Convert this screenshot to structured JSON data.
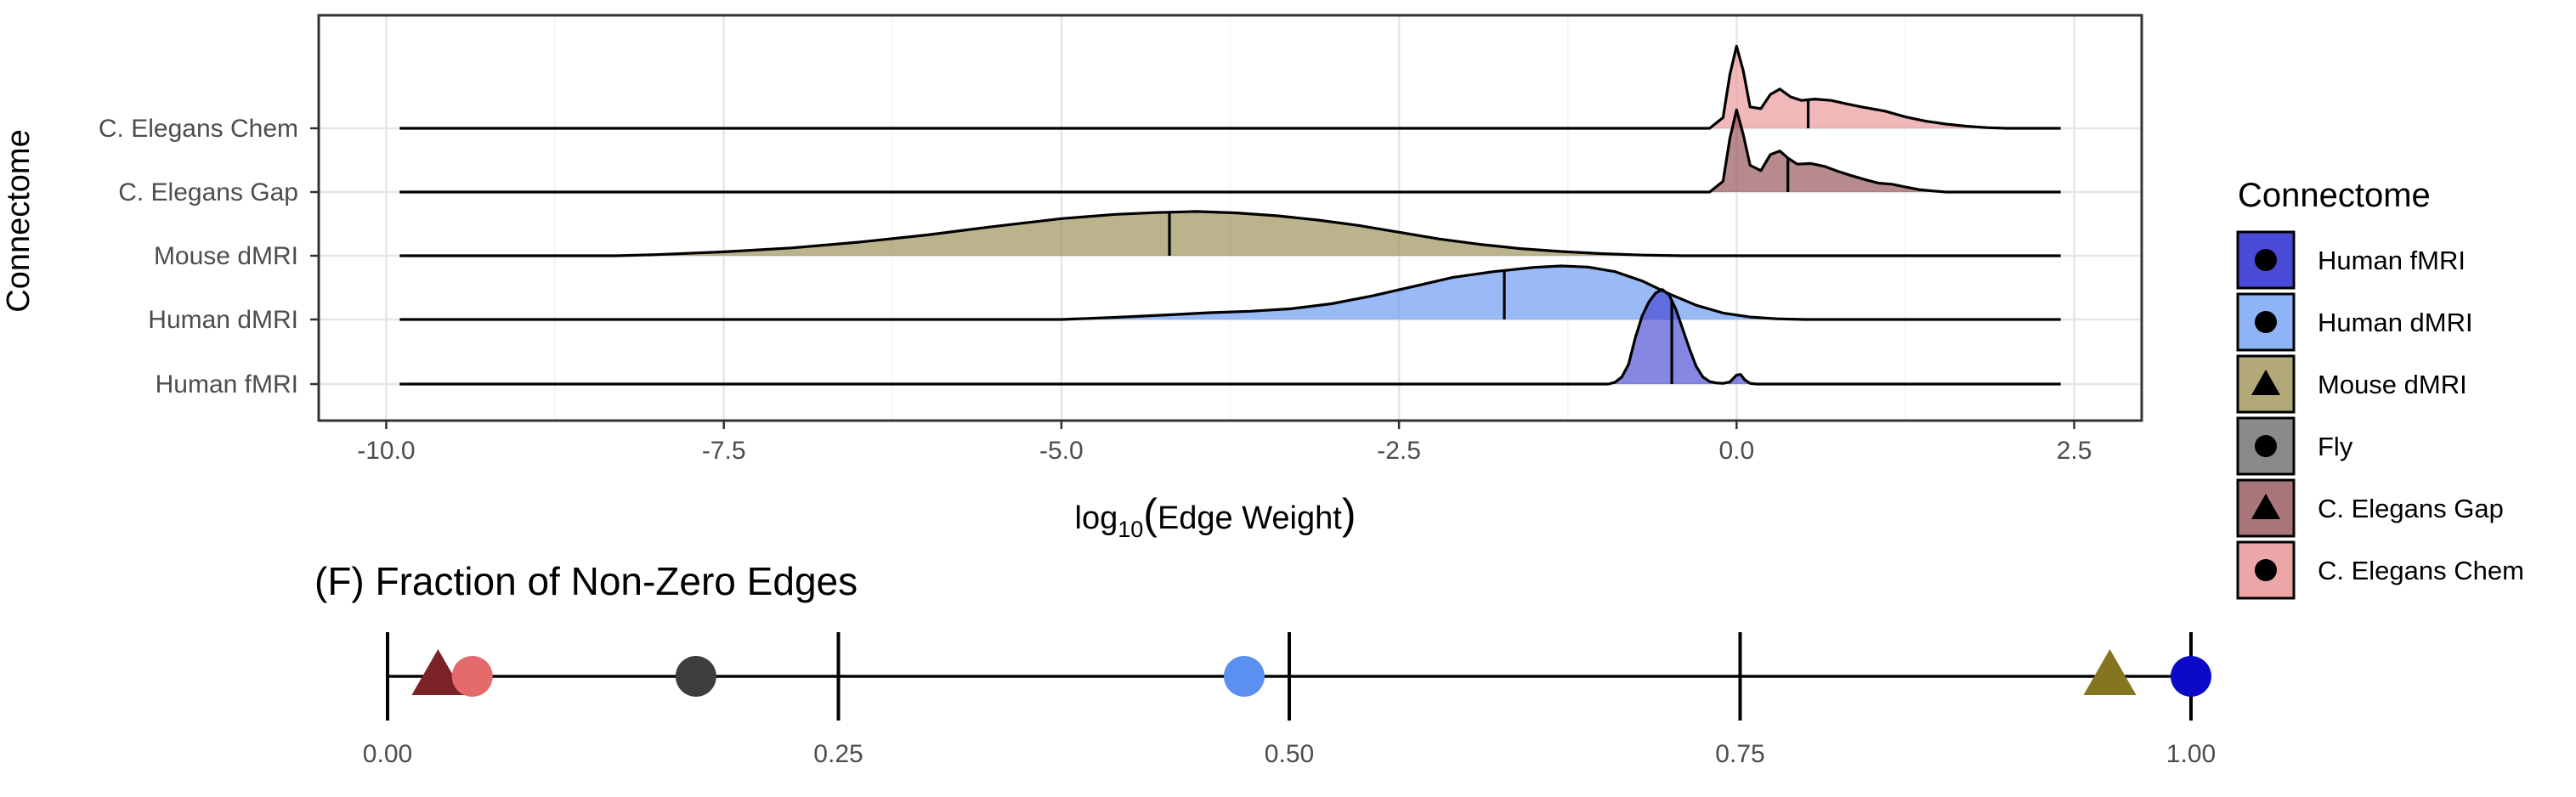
{
  "chart_data": [
    {
      "type": "ridgeline",
      "ylabel": "Connectome",
      "xlabel_prefix": "log",
      "xlabel_sub": "10",
      "xlabel_inner": "Edge Weight",
      "xlim": [
        -10.5,
        3.0
      ],
      "x_ticks": [
        -10.0,
        -7.5,
        -5.0,
        -2.5,
        0.0,
        2.5
      ],
      "x_tick_labels": [
        "-10.0",
        "-7.5",
        "-5.0",
        "-2.5",
        "0.0",
        "2.5"
      ],
      "grid": true,
      "series": [
        {
          "name": "Human fMRI",
          "color": "#3b3ed0",
          "line_range": [
            -9.9,
            2.4
          ],
          "median": -0.48,
          "density": [
            [
              -0.95,
              0
            ],
            [
              -0.9,
              0.05
            ],
            [
              -0.85,
              0.2
            ],
            [
              -0.8,
              0.55
            ],
            [
              -0.75,
              1.3
            ],
            [
              -0.7,
              1.9
            ],
            [
              -0.65,
              2.3
            ],
            [
              -0.6,
              2.55
            ],
            [
              -0.55,
              2.65
            ],
            [
              -0.5,
              2.5
            ],
            [
              -0.45,
              2.1
            ],
            [
              -0.4,
              1.55
            ],
            [
              -0.35,
              1.0
            ],
            [
              -0.3,
              0.5
            ],
            [
              -0.25,
              0.2
            ],
            [
              -0.2,
              0.07
            ],
            [
              -0.15,
              0.03
            ],
            [
              -0.1,
              0.02
            ],
            [
              -0.05,
              0.06
            ],
            [
              0.0,
              0.25
            ],
            [
              0.03,
              0.27
            ],
            [
              0.06,
              0.12
            ],
            [
              0.1,
              0.02
            ],
            [
              0.15,
              0
            ]
          ]
        },
        {
          "name": "Human dMRI",
          "color": "#5b8ff0",
          "line_range": [
            -9.9,
            2.4
          ],
          "median": -1.72,
          "density": [
            [
              -5.0,
              0
            ],
            [
              -4.6,
              0.06
            ],
            [
              -4.2,
              0.13
            ],
            [
              -3.9,
              0.19
            ],
            [
              -3.6,
              0.23
            ],
            [
              -3.3,
              0.3
            ],
            [
              -3.0,
              0.44
            ],
            [
              -2.7,
              0.66
            ],
            [
              -2.4,
              0.92
            ],
            [
              -2.1,
              1.18
            ],
            [
              -1.8,
              1.34
            ],
            [
              -1.5,
              1.46
            ],
            [
              -1.3,
              1.5
            ],
            [
              -1.1,
              1.47
            ],
            [
              -0.9,
              1.34
            ],
            [
              -0.7,
              1.08
            ],
            [
              -0.5,
              0.72
            ],
            [
              -0.3,
              0.4
            ],
            [
              -0.1,
              0.18
            ],
            [
              0.1,
              0.07
            ],
            [
              0.3,
              0.02
            ],
            [
              0.5,
              0
            ]
          ]
        },
        {
          "name": "Mouse dMRI",
          "color": "#8f8443",
          "line_range": [
            -9.9,
            2.4
          ],
          "median": -4.2,
          "density": [
            [
              -8.3,
              0
            ],
            [
              -8.0,
              0.03
            ],
            [
              -7.5,
              0.11
            ],
            [
              -7.0,
              0.22
            ],
            [
              -6.5,
              0.38
            ],
            [
              -6.0,
              0.58
            ],
            [
              -5.5,
              0.82
            ],
            [
              -5.0,
              1.04
            ],
            [
              -4.6,
              1.16
            ],
            [
              -4.3,
              1.21
            ],
            [
              -4.0,
              1.24
            ],
            [
              -3.7,
              1.2
            ],
            [
              -3.4,
              1.12
            ],
            [
              -3.1,
              1.0
            ],
            [
              -2.8,
              0.85
            ],
            [
              -2.5,
              0.66
            ],
            [
              -2.2,
              0.47
            ],
            [
              -1.9,
              0.32
            ],
            [
              -1.6,
              0.2
            ],
            [
              -1.3,
              0.12
            ],
            [
              -1.0,
              0.06
            ],
            [
              -0.7,
              0.02
            ],
            [
              -0.4,
              0
            ]
          ]
        },
        {
          "name": "C. Elegans Gap",
          "color": "#8a4347",
          "line_range": [
            -9.9,
            2.4
          ],
          "median": 0.38,
          "density": [
            [
              -0.2,
              0
            ],
            [
              -0.1,
              0.3
            ],
            [
              -0.05,
              1.5
            ],
            [
              0.0,
              2.3
            ],
            [
              0.05,
              1.6
            ],
            [
              0.1,
              0.75
            ],
            [
              0.18,
              0.6
            ],
            [
              0.25,
              1.05
            ],
            [
              0.32,
              1.15
            ],
            [
              0.38,
              0.95
            ],
            [
              0.45,
              0.78
            ],
            [
              0.55,
              0.8
            ],
            [
              0.65,
              0.72
            ],
            [
              0.75,
              0.58
            ],
            [
              0.85,
              0.46
            ],
            [
              0.95,
              0.35
            ],
            [
              1.05,
              0.25
            ],
            [
              1.15,
              0.22
            ],
            [
              1.25,
              0.14
            ],
            [
              1.35,
              0.07
            ],
            [
              1.45,
              0.03
            ],
            [
              1.55,
              0
            ]
          ]
        },
        {
          "name": "C. Elegans Chem",
          "color": "#e88d8e",
          "line_range": [
            -9.9,
            2.4
          ],
          "median": 0.53,
          "density": [
            [
              -0.2,
              0
            ],
            [
              -0.1,
              0.3
            ],
            [
              -0.05,
              1.5
            ],
            [
              0.0,
              2.3
            ],
            [
              0.05,
              1.6
            ],
            [
              0.1,
              0.6
            ],
            [
              0.18,
              0.55
            ],
            [
              0.25,
              0.95
            ],
            [
              0.32,
              1.1
            ],
            [
              0.4,
              0.88
            ],
            [
              0.48,
              0.78
            ],
            [
              0.58,
              0.82
            ],
            [
              0.7,
              0.78
            ],
            [
              0.82,
              0.68
            ],
            [
              0.95,
              0.58
            ],
            [
              1.1,
              0.48
            ],
            [
              1.25,
              0.32
            ],
            [
              1.4,
              0.2
            ],
            [
              1.55,
              0.12
            ],
            [
              1.7,
              0.06
            ],
            [
              1.85,
              0.02
            ],
            [
              2.0,
              0
            ]
          ]
        }
      ],
      "legend": {
        "title": "Connectome",
        "placement": "right",
        "items": [
          {
            "label": "Human fMRI",
            "color": "#4a4bd6",
            "shape": "circle"
          },
          {
            "label": "Human dMRI",
            "color": "#8fb4f5",
            "shape": "circle"
          },
          {
            "label": "Mouse dMRI",
            "color": "#b3a978",
            "shape": "triangle"
          },
          {
            "label": "Fly",
            "color": "#8a8a8a",
            "shape": "circle"
          },
          {
            "label": "C. Elegans Gap",
            "color": "#a87679",
            "shape": "triangle"
          },
          {
            "label": "C. Elegans Chem",
            "color": "#eda6a7",
            "shape": "circle"
          }
        ]
      }
    },
    {
      "type": "scatter",
      "title": "(F) Fraction of Non-Zero Edges",
      "xlim": [
        0.0,
        1.0
      ],
      "x_ticks": [
        0.0,
        0.25,
        0.5,
        0.75,
        1.0
      ],
      "x_tick_labels": [
        "0.00",
        "0.25",
        "0.50",
        "0.75",
        "1.00"
      ],
      "points": [
        {
          "series": "C. Elegans Gap",
          "x": 0.028,
          "color": "#7a2226",
          "shape": "triangle"
        },
        {
          "series": "C. Elegans Chem",
          "x": 0.047,
          "color": "#e46a6b",
          "shape": "circle"
        },
        {
          "series": "Fly",
          "x": 0.171,
          "color": "#3d3d3d",
          "shape": "circle"
        },
        {
          "series": "Human dMRI",
          "x": 0.475,
          "color": "#5b8ff0",
          "shape": "circle"
        },
        {
          "series": "Mouse dMRI",
          "x": 0.955,
          "color": "#857521",
          "shape": "triangle"
        },
        {
          "series": "Human fMRI",
          "x": 1.0,
          "color": "#0a0ac8",
          "shape": "circle"
        }
      ]
    }
  ]
}
